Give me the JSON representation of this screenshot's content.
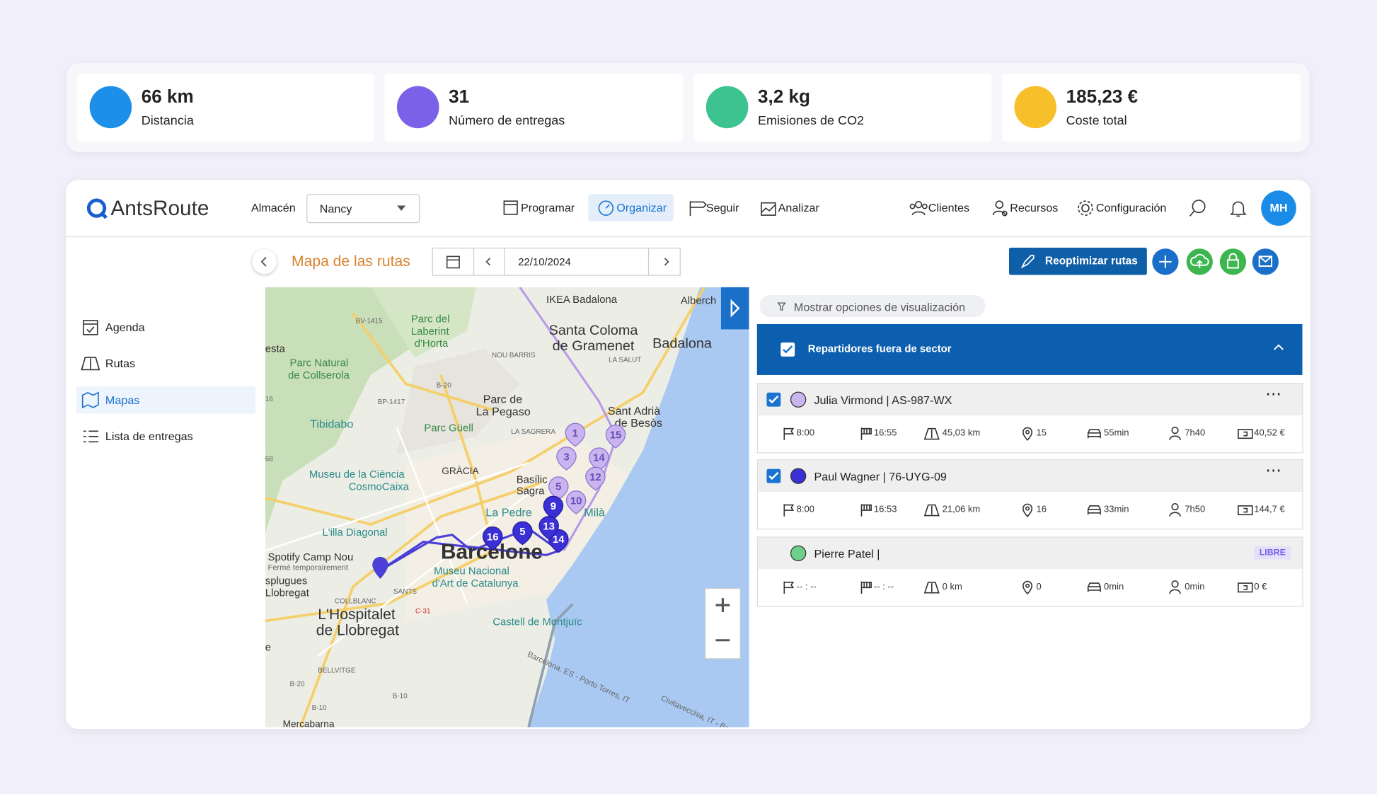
{
  "stats": [
    {
      "value": "66 km",
      "label": "Distancia"
    },
    {
      "value": "31",
      "label": "Número de entregas"
    },
    {
      "value": "3,2 kg",
      "label": "Emisiones de CO2"
    },
    {
      "value": "185,23 €",
      "label": "Coste total"
    }
  ],
  "nav": {
    "brand": "AntsRoute",
    "warehouse_label": "Almacén",
    "warehouse": "Nancy",
    "menu": [
      "Programar",
      "Organizar",
      "Seguir",
      "Analizar"
    ],
    "right_menu": [
      "Clientes",
      "Recursos",
      "Configuración"
    ],
    "avatar": "MH"
  },
  "sidebar": [
    "Agenda",
    "Rutas",
    "Mapas",
    "Lista de entregas"
  ],
  "toolbar": {
    "title": "Mapa de las rutas",
    "date": "22/10/2024",
    "button": "Reoptimizar rutas"
  },
  "panel": {
    "options": "Mostrar opciones de visualización",
    "group": "Repartidores fuera de sector",
    "drivers": [
      {
        "name": "Julia Virmond | AS-987-WX",
        "stats": [
          "8:00",
          "16:55",
          "45,03 km",
          "15",
          "55min",
          "7h40",
          "40,52 €"
        ]
      },
      {
        "name": "Paul Wagner | 76-UYG-09",
        "stats": [
          "8:00",
          "16:53",
          "21,06 km",
          "16",
          "33min",
          "7h50",
          "144,7 €"
        ]
      },
      {
        "name": "Pierre Patel |",
        "badge": "LIBRE",
        "stats": [
          "-- : --",
          "-- : --",
          "0 km",
          "0",
          "0min",
          "0min",
          "0 €"
        ]
      }
    ]
  },
  "map": {
    "labels": [
      "IKEA Badalona",
      "Alberch",
      "Parc del",
      "Laberint",
      "d'Horta",
      "BV-1415",
      "Santa Coloma",
      "de Gramenet",
      "Badalona",
      "esta",
      "NOU BARRIS",
      "LA SALUT",
      "Parc Natural",
      "de Collserola",
      "B-20",
      "BP-1417",
      "16",
      "Parc de",
      "La Pegaso",
      "Sant Adrià",
      "de Besòs",
      "Tibidabo",
      "Parc Güell",
      "LA SAGRERA",
      "68",
      "GRÀCIA",
      "Museu de la Ciència",
      "CosmoCaixa",
      "Basílic",
      "Sagra",
      "La Pedre",
      "Milà",
      "L'illa Diagonal",
      "Spotify Camp Nou",
      "Fermé temporairement",
      "Barcelone",
      "Museu Nacional",
      "d'Art de Catalunya",
      "splugues",
      "Llobregat",
      "SANTS",
      "COLLBLANC",
      "C-31",
      "L'Hospitalet",
      "de Llobregat",
      "Castell de Montjuïc",
      "e",
      "BELLVITGE",
      "B-20",
      "B-10",
      "B-10",
      "Barcelona, ES - Porto Torres, IT",
      "Civitavecchia, IT - Barce",
      "Mercabarna"
    ],
    "markers": [
      "1",
      "15",
      "3",
      "14",
      "12",
      "5",
      "10",
      "9",
      "16",
      "5",
      "14",
      "13"
    ]
  }
}
